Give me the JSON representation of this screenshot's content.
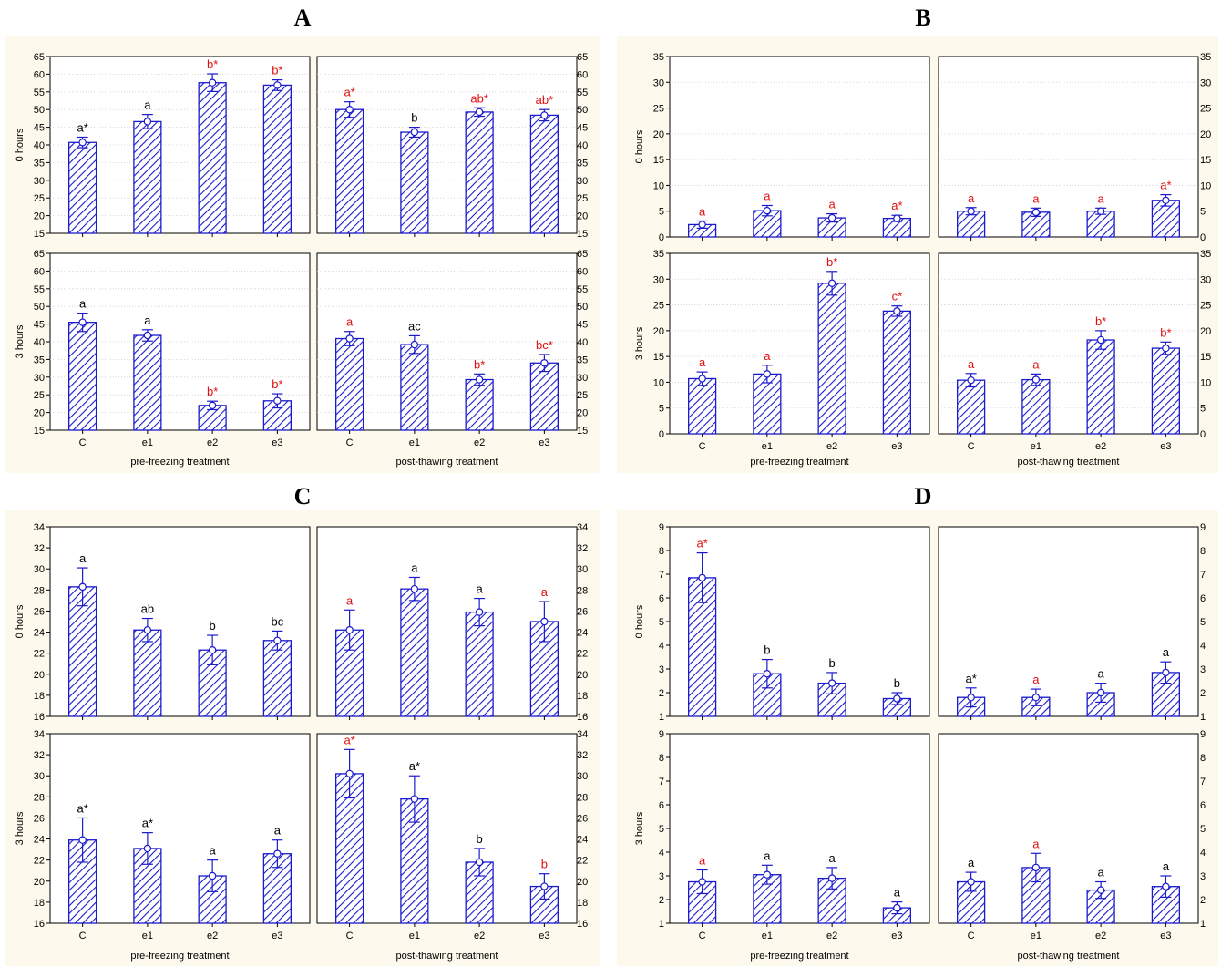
{
  "colors": {
    "panel_bg": "#fdf9ec",
    "bar": "#1a1acc",
    "label_black": "#000000",
    "label_red": "#e01010",
    "grid": "#cfcfcf"
  },
  "chart_data": [
    {
      "id": "A",
      "title": "A",
      "type": "bar",
      "categories": [
        "C",
        "e1",
        "e2",
        "e3"
      ],
      "row_labels": [
        "0 hours",
        "3 hours"
      ],
      "col_labels": [
        "pre-freezing treatment",
        "post-thawing treatment"
      ],
      "ylim": [
        15,
        65
      ],
      "yticks": [
        "15",
        "20",
        "25",
        "30",
        "35",
        "40",
        "45",
        "50",
        "55",
        "60",
        "65"
      ],
      "grid": true,
      "cells": [
        {
          "row": 0,
          "col": 0,
          "values": [
            40.7,
            46.6,
            57.6,
            56.9
          ],
          "err": [
            1.5,
            2.0,
            2.5,
            1.5
          ],
          "labels": [
            "a*",
            "a",
            "b*",
            "b*"
          ],
          "label_colors": [
            "black",
            "black",
            "red",
            "red"
          ]
        },
        {
          "row": 0,
          "col": 1,
          "values": [
            50.0,
            43.6,
            49.3,
            48.4
          ],
          "err": [
            2.2,
            1.4,
            1.2,
            1.6
          ],
          "labels": [
            "a*",
            "b",
            "ab*",
            "ab*"
          ],
          "label_colors": [
            "red",
            "black",
            "red",
            "red"
          ]
        },
        {
          "row": 1,
          "col": 0,
          "values": [
            45.5,
            41.8,
            22.0,
            23.3
          ],
          "err": [
            2.6,
            1.6,
            1.2,
            2.0
          ],
          "labels": [
            "a",
            "a",
            "b*",
            "b*"
          ],
          "label_colors": [
            "black",
            "black",
            "red",
            "red"
          ]
        },
        {
          "row": 1,
          "col": 1,
          "values": [
            40.9,
            39.2,
            29.3,
            34.0
          ],
          "err": [
            2.0,
            2.5,
            1.6,
            2.4
          ],
          "labels": [
            "a",
            "ac",
            "b*",
            "bc*"
          ],
          "label_colors": [
            "red",
            "black",
            "red",
            "red"
          ]
        }
      ]
    },
    {
      "id": "B",
      "title": "B",
      "type": "bar",
      "categories": [
        "C",
        "e1",
        "e2",
        "e3"
      ],
      "row_labels": [
        "0 hours",
        "3 hours"
      ],
      "col_labels": [
        "pre-freezing treatment",
        "post-thawing treatment"
      ],
      "ylim": [
        0,
        35
      ],
      "yticks": [
        "0",
        "5",
        "10",
        "15",
        "20",
        "25",
        "30",
        "35"
      ],
      "grid": true,
      "cells": [
        {
          "row": 0,
          "col": 0,
          "values": [
            2.4,
            5.1,
            3.7,
            3.6
          ],
          "err": [
            0.7,
            1.0,
            0.8,
            0.6
          ],
          "labels": [
            "a",
            "a",
            "a",
            "a*"
          ],
          "label_colors": [
            "red",
            "red",
            "red",
            "red"
          ]
        },
        {
          "row": 0,
          "col": 1,
          "values": [
            5.0,
            4.8,
            5.0,
            7.1
          ],
          "err": [
            0.7,
            0.8,
            0.6,
            1.1
          ],
          "labels": [
            "a",
            "a",
            "a",
            "a*"
          ],
          "label_colors": [
            "red",
            "red",
            "red",
            "red"
          ]
        },
        {
          "row": 1,
          "col": 0,
          "values": [
            10.7,
            11.6,
            29.2,
            23.8
          ],
          "err": [
            1.3,
            1.7,
            2.3,
            1.0
          ],
          "labels": [
            "a",
            "a",
            "b*",
            "c*"
          ],
          "label_colors": [
            "red",
            "red",
            "red",
            "red"
          ]
        },
        {
          "row": 1,
          "col": 1,
          "values": [
            10.4,
            10.5,
            18.2,
            16.6
          ],
          "err": [
            1.3,
            1.1,
            1.8,
            1.2
          ],
          "labels": [
            "a",
            "a",
            "b*",
            "b*"
          ],
          "label_colors": [
            "red",
            "red",
            "red",
            "red"
          ]
        }
      ]
    },
    {
      "id": "C",
      "title": "C",
      "type": "bar",
      "categories": [
        "C",
        "e1",
        "e2",
        "e3"
      ],
      "row_labels": [
        "0 hours",
        "3 hours"
      ],
      "col_labels": [
        "pre-freezing treatment",
        "post-thawing treatment"
      ],
      "ylim": [
        16,
        34
      ],
      "yticks": [
        "16",
        "18",
        "20",
        "22",
        "24",
        "26",
        "28",
        "30",
        "32",
        "34"
      ],
      "grid": false,
      "cells": [
        {
          "row": 0,
          "col": 0,
          "values": [
            28.3,
            24.2,
            22.3,
            23.2
          ],
          "err": [
            1.8,
            1.1,
            1.4,
            0.9
          ],
          "labels": [
            "a",
            "ab",
            "b",
            "bc"
          ],
          "label_colors": [
            "black",
            "black",
            "black",
            "black"
          ]
        },
        {
          "row": 0,
          "col": 1,
          "values": [
            24.2,
            28.1,
            25.9,
            25.0
          ],
          "err": [
            1.9,
            1.1,
            1.3,
            1.9
          ],
          "labels": [
            "a",
            "a",
            "a",
            "a"
          ],
          "label_colors": [
            "red",
            "black",
            "black",
            "red"
          ]
        },
        {
          "row": 1,
          "col": 0,
          "values": [
            23.9,
            23.1,
            20.5,
            22.6
          ],
          "err": [
            2.1,
            1.5,
            1.5,
            1.3
          ],
          "labels": [
            "a*",
            "a*",
            "a",
            "a"
          ],
          "label_colors": [
            "black",
            "black",
            "black",
            "black"
          ]
        },
        {
          "row": 1,
          "col": 1,
          "values": [
            30.2,
            27.8,
            21.8,
            19.5
          ],
          "err": [
            2.3,
            2.2,
            1.3,
            1.2
          ],
          "labels": [
            "a*",
            "a*",
            "b",
            "b"
          ],
          "label_colors": [
            "red",
            "black",
            "black",
            "red"
          ]
        }
      ]
    },
    {
      "id": "D",
      "title": "D",
      "type": "bar",
      "categories": [
        "C",
        "e1",
        "e2",
        "e3"
      ],
      "row_labels": [
        "0 hours",
        "3 hours"
      ],
      "col_labels": [
        "pre-freezing treatment",
        "post-thawing treatment"
      ],
      "ylim": [
        1,
        9
      ],
      "yticks": [
        "1",
        "2",
        "3",
        "4",
        "5",
        "6",
        "7",
        "8",
        "9"
      ],
      "grid": false,
      "cells": [
        {
          "row": 0,
          "col": 0,
          "values": [
            6.85,
            2.8,
            2.4,
            1.75
          ],
          "err": [
            1.05,
            0.6,
            0.45,
            0.25
          ],
          "labels": [
            "a*",
            "b",
            "b",
            "b"
          ],
          "label_colors": [
            "red",
            "black",
            "black",
            "black"
          ]
        },
        {
          "row": 0,
          "col": 1,
          "values": [
            1.8,
            1.8,
            2.0,
            2.85
          ],
          "err": [
            0.4,
            0.35,
            0.4,
            0.45
          ],
          "labels": [
            "a*",
            "a",
            "a",
            "a"
          ],
          "label_colors": [
            "black",
            "red",
            "black",
            "black"
          ]
        },
        {
          "row": 1,
          "col": 0,
          "values": [
            2.75,
            3.05,
            2.9,
            1.65
          ],
          "err": [
            0.5,
            0.4,
            0.45,
            0.25
          ],
          "labels": [
            "a",
            "a",
            "a",
            "a"
          ],
          "label_colors": [
            "red",
            "black",
            "black",
            "black"
          ]
        },
        {
          "row": 1,
          "col": 1,
          "values": [
            2.75,
            3.35,
            2.4,
            2.55
          ],
          "err": [
            0.4,
            0.6,
            0.35,
            0.45
          ],
          "labels": [
            "a",
            "a",
            "a",
            "a"
          ],
          "label_colors": [
            "black",
            "red",
            "black",
            "black"
          ]
        }
      ]
    }
  ]
}
